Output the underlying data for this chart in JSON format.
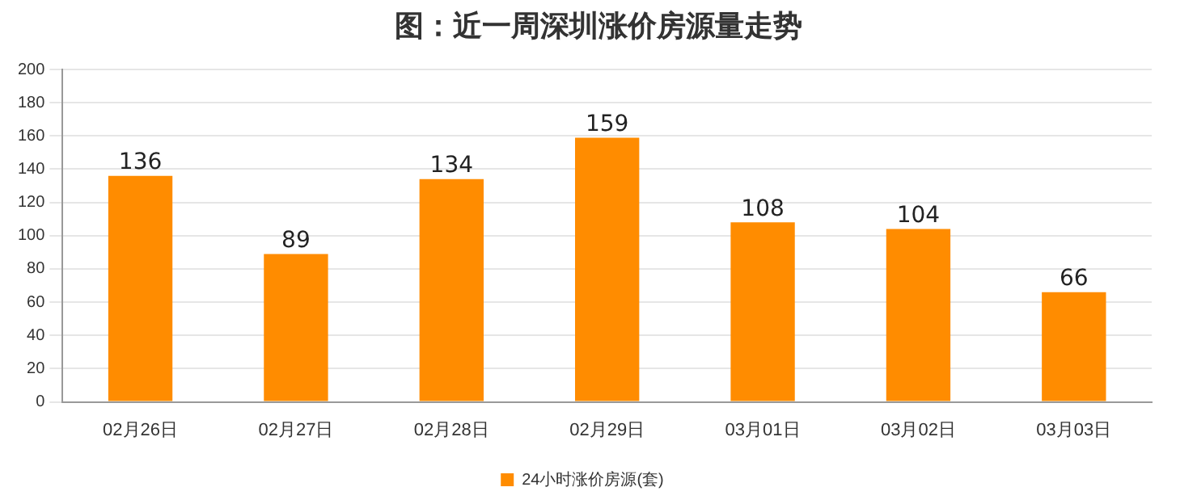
{
  "chart_data": {
    "type": "bar",
    "title": "图：近一周深圳涨价房源量走势",
    "categories": [
      "02月26日",
      "02月27日",
      "02月28日",
      "02月29日",
      "03月01日",
      "03月02日",
      "03月03日"
    ],
    "series": [
      {
        "name": "24小时涨价房源(套)",
        "color": "#ff8c00",
        "values": [
          136,
          89,
          134,
          159,
          108,
          104,
          66
        ]
      }
    ],
    "ylim": [
      0,
      200
    ],
    "yticks": [
      0,
      20,
      40,
      60,
      80,
      100,
      120,
      140,
      160,
      180,
      200
    ],
    "grid": "y",
    "legend": "bottom",
    "data_labels": true
  }
}
